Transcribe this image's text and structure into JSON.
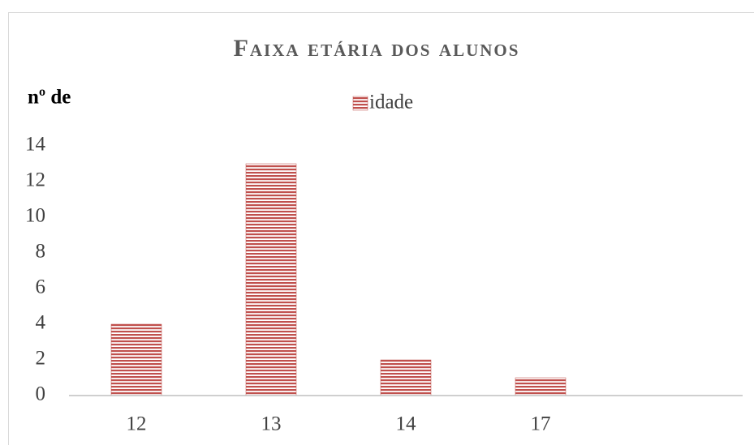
{
  "chart_data": {
    "type": "bar",
    "title": "Faixa etária dos alunos",
    "ylabel": "nº de",
    "categories": [
      "12",
      "13",
      "14",
      "17",
      null
    ],
    "values": [
      4,
      13,
      2,
      1,
      null
    ],
    "series_name": "idade",
    "color": "#c0504d",
    "ylim": [
      0,
      14
    ],
    "yticks": [
      0,
      2,
      4,
      6,
      8,
      10,
      12,
      14
    ],
    "grid": false,
    "legend": "top"
  }
}
